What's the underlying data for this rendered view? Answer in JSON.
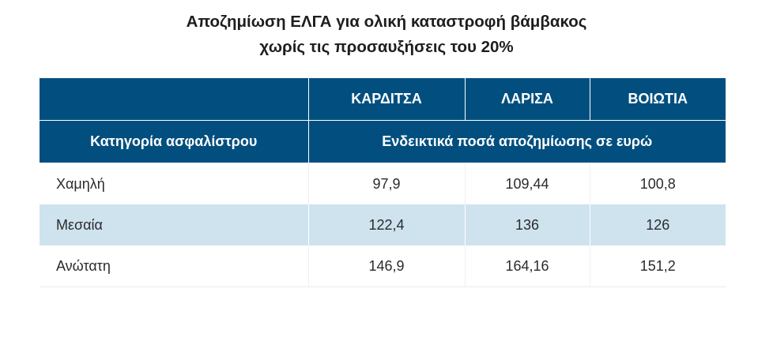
{
  "title": {
    "line1": "Αποζημίωση ΕΛΓΑ για ολική καταστροφή βάμβακος",
    "line2": "χωρίς τις προσαυξήσεις του 20%"
  },
  "table": {
    "regions": [
      "ΚΑΡΔΙΤΣΑ",
      "ΛΑΡΙΣΑ",
      "ΒΟΙΩΤΙΑ"
    ],
    "category_header": "Κατηγορία ασφαλίστρου",
    "amounts_header": "Ενδεικτικά ποσά αποζημίωσης σε ευρώ",
    "rows": [
      {
        "label": "Χαμηλή",
        "values": [
          "97,9",
          "109,44",
          "100,8"
        ]
      },
      {
        "label": "Μεσαία",
        "values": [
          "122,4",
          "136",
          "126"
        ]
      },
      {
        "label": "Ανώτατη",
        "values": [
          "146,9",
          "164,16",
          "151,2"
        ]
      }
    ]
  },
  "colors": {
    "header_bg": "#024f7f",
    "stripe_bg": "#cfe3ef"
  }
}
